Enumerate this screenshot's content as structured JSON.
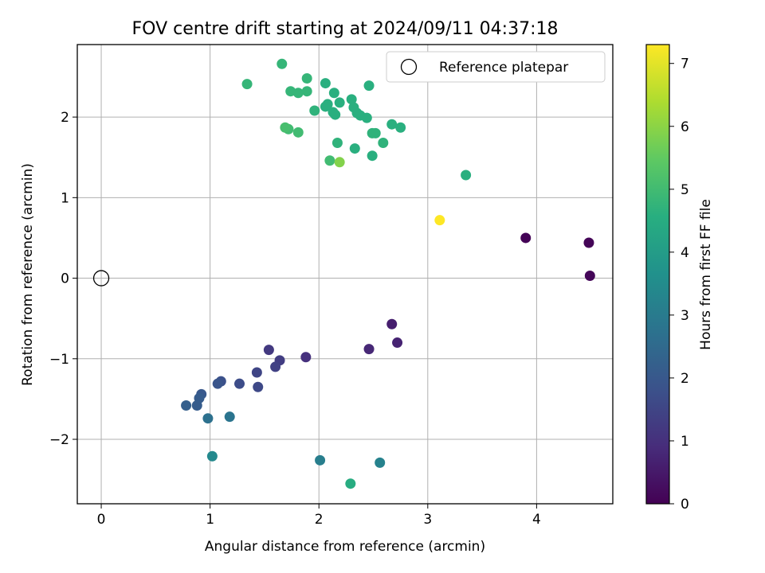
{
  "chart_data": {
    "type": "scatter",
    "title": "FOV centre drift starting at 2024/09/11 04:37:18",
    "xlabel": "Angular distance from reference (arcmin)",
    "ylabel": "Rotation from reference (arcmin)",
    "xlim": [
      -0.22,
      4.7
    ],
    "ylim": [
      -2.8,
      2.9
    ],
    "xticks": [
      0,
      1,
      2,
      3,
      4
    ],
    "yticks": [
      -2,
      -1,
      0,
      1,
      2
    ],
    "grid": true,
    "legend": {
      "placement": "top-right",
      "entries": [
        "Reference platepar"
      ]
    },
    "reference_point": {
      "x": 0,
      "y": 0,
      "label": "Reference platepar"
    },
    "colorbar": {
      "label": "Hours from first FF file",
      "range": [
        0,
        7.3
      ],
      "ticks": [
        0,
        1,
        2,
        3,
        4,
        5,
        6,
        7
      ],
      "colormap": "viridis"
    },
    "series": [
      {
        "points": [
          {
            "x": 3.9,
            "y": 0.5,
            "c": 0.05
          },
          {
            "x": 4.48,
            "y": 0.44,
            "c": 0.08
          },
          {
            "x": 4.49,
            "y": 0.03,
            "c": 0.1
          },
          {
            "x": 2.67,
            "y": -0.57,
            "c": 0.6
          },
          {
            "x": 2.72,
            "y": -0.8,
            "c": 0.7
          },
          {
            "x": 2.46,
            "y": -0.88,
            "c": 0.8
          },
          {
            "x": 1.88,
            "y": -0.98,
            "c": 1.0
          },
          {
            "x": 1.54,
            "y": -0.89,
            "c": 1.2
          },
          {
            "x": 1.64,
            "y": -1.02,
            "c": 1.3
          },
          {
            "x": 1.6,
            "y": -1.1,
            "c": 1.4
          },
          {
            "x": 1.43,
            "y": -1.17,
            "c": 1.5
          },
          {
            "x": 1.44,
            "y": -1.35,
            "c": 1.6
          },
          {
            "x": 1.27,
            "y": -1.31,
            "c": 1.7
          },
          {
            "x": 1.1,
            "y": -1.28,
            "c": 1.8
          },
          {
            "x": 1.07,
            "y": -1.31,
            "c": 1.9
          },
          {
            "x": 0.92,
            "y": -1.44,
            "c": 2.0
          },
          {
            "x": 0.9,
            "y": -1.49,
            "c": 2.1
          },
          {
            "x": 0.88,
            "y": -1.58,
            "c": 2.1
          },
          {
            "x": 0.78,
            "y": -1.58,
            "c": 2.2
          },
          {
            "x": 0.98,
            "y": -1.74,
            "c": 2.7
          },
          {
            "x": 1.18,
            "y": -1.72,
            "c": 2.8
          },
          {
            "x": 2.01,
            "y": -2.26,
            "c": 3.1
          },
          {
            "x": 2.56,
            "y": -2.29,
            "c": 3.2
          },
          {
            "x": 1.02,
            "y": -2.21,
            "c": 3.4
          },
          {
            "x": 2.29,
            "y": -2.55,
            "c": 4.5
          },
          {
            "x": 2.49,
            "y": 1.52,
            "c": 4.6
          },
          {
            "x": 2.33,
            "y": 1.61,
            "c": 4.6
          },
          {
            "x": 2.59,
            "y": 1.68,
            "c": 4.7
          },
          {
            "x": 2.17,
            "y": 1.68,
            "c": 4.7
          },
          {
            "x": 2.52,
            "y": 1.8,
            "c": 4.7
          },
          {
            "x": 2.49,
            "y": 1.8,
            "c": 4.7
          },
          {
            "x": 2.67,
            "y": 1.91,
            "c": 4.6
          },
          {
            "x": 2.75,
            "y": 1.87,
            "c": 4.6
          },
          {
            "x": 2.44,
            "y": 1.99,
            "c": 4.6
          },
          {
            "x": 2.38,
            "y": 2.02,
            "c": 4.6
          },
          {
            "x": 2.35,
            "y": 2.05,
            "c": 4.6
          },
          {
            "x": 2.15,
            "y": 2.03,
            "c": 4.6
          },
          {
            "x": 2.13,
            "y": 2.06,
            "c": 4.6
          },
          {
            "x": 2.32,
            "y": 2.12,
            "c": 4.6
          },
          {
            "x": 2.3,
            "y": 2.22,
            "c": 4.6
          },
          {
            "x": 2.19,
            "y": 2.18,
            "c": 4.6
          },
          {
            "x": 2.08,
            "y": 2.16,
            "c": 4.6
          },
          {
            "x": 2.06,
            "y": 2.13,
            "c": 4.6
          },
          {
            "x": 2.14,
            "y": 2.3,
            "c": 4.6
          },
          {
            "x": 1.96,
            "y": 2.08,
            "c": 4.7
          },
          {
            "x": 1.89,
            "y": 2.32,
            "c": 4.8
          },
          {
            "x": 1.89,
            "y": 2.48,
            "c": 4.8
          },
          {
            "x": 1.81,
            "y": 2.3,
            "c": 4.8
          },
          {
            "x": 1.74,
            "y": 2.32,
            "c": 4.8
          },
          {
            "x": 2.06,
            "y": 2.42,
            "c": 4.6
          },
          {
            "x": 2.46,
            "y": 2.39,
            "c": 4.6
          },
          {
            "x": 1.66,
            "y": 2.66,
            "c": 4.8
          },
          {
            "x": 1.34,
            "y": 2.41,
            "c": 4.8
          },
          {
            "x": 1.72,
            "y": 1.85,
            "c": 5.0
          },
          {
            "x": 1.69,
            "y": 1.87,
            "c": 5.1
          },
          {
            "x": 1.81,
            "y": 1.81,
            "c": 5.0
          },
          {
            "x": 2.1,
            "y": 1.46,
            "c": 5.0
          },
          {
            "x": 2.19,
            "y": 1.44,
            "c": 5.9
          },
          {
            "x": 3.35,
            "y": 1.28,
            "c": 4.6
          },
          {
            "x": 3.11,
            "y": 0.72,
            "c": 7.3
          }
        ]
      }
    ]
  }
}
